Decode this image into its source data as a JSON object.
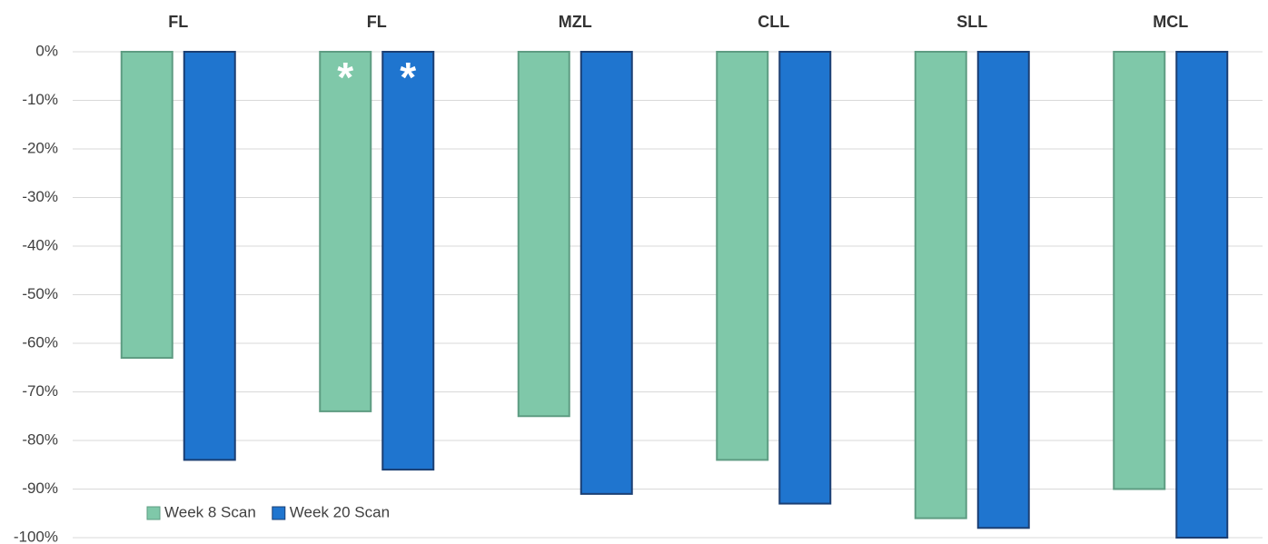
{
  "chart_data": {
    "type": "bar",
    "categories": [
      "FL",
      "FL",
      "MZL",
      "CLL",
      "SLL",
      "MCL"
    ],
    "series": [
      {
        "name": "Week 8 Scan",
        "color": "#7fc8a9",
        "edgecolor": "#5e9c82",
        "values": [
          -63,
          -74,
          -75,
          -84,
          -96,
          -90
        ],
        "annotations": [
          null,
          "*",
          null,
          null,
          null,
          null
        ]
      },
      {
        "name": "Week 20 Scan",
        "color": "#1f75cf",
        "edgecolor": "#1b3f73",
        "values": [
          -84,
          -86,
          -91,
          -93,
          -98,
          -100
        ],
        "annotations": [
          null,
          "*",
          null,
          null,
          null,
          null
        ]
      }
    ],
    "ylim": [
      -100,
      0
    ],
    "yticks": [
      {
        "value": 0,
        "label": "0%"
      },
      {
        "value": -10,
        "label": "-10%"
      },
      {
        "value": -20,
        "label": "-20%"
      },
      {
        "value": -30,
        "label": "-30%"
      },
      {
        "value": -40,
        "label": "-40%"
      },
      {
        "value": -50,
        "label": "-50%"
      },
      {
        "value": -60,
        "label": "-60%"
      },
      {
        "value": -70,
        "label": "-70%"
      },
      {
        "value": -80,
        "label": "-80%"
      },
      {
        "value": -90,
        "label": "-90%"
      },
      {
        "value": -100,
        "label": "-100%"
      }
    ],
    "grid": true,
    "legend": "lower left",
    "category_axis": "top"
  }
}
